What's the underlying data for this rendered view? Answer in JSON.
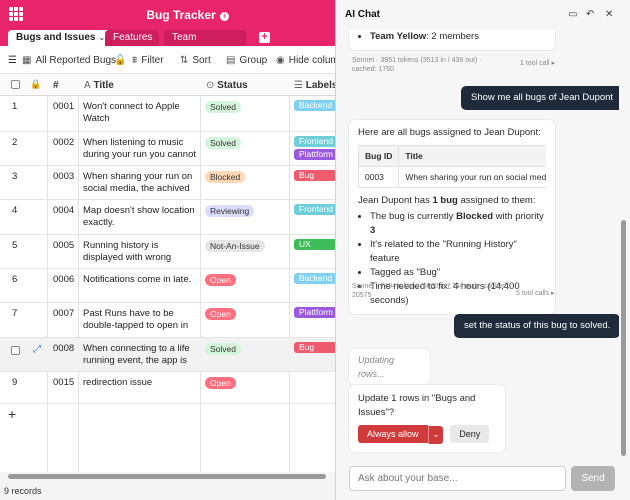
{
  "app": {
    "title": "Bug Tracker"
  },
  "tabs": [
    {
      "label": "Bugs and Issues"
    },
    {
      "label": "Features"
    },
    {
      "label": "Team members"
    }
  ],
  "toolbar": {
    "view": "All Reported Bugs",
    "filter": "Filter",
    "sort": "Sort",
    "group": "Group",
    "hide": "Hide columns"
  },
  "columns": {
    "title": "Title",
    "status": "Status",
    "labels": "Labels"
  },
  "rows": [
    {
      "n": "1",
      "id": "0001",
      "title": "Won't connect to Apple Watch",
      "status": "Solved",
      "labels": [
        "Backend"
      ]
    },
    {
      "n": "2",
      "id": "0002",
      "title": "When listening to music during your run you cannot ...",
      "status": "Solved",
      "labels": [
        "Frontend",
        "Plattform"
      ]
    },
    {
      "n": "3",
      "id": "0003",
      "title": "When sharing your run on social media, the achived ...",
      "status": "Blocked",
      "labels": [
        "Bug"
      ]
    },
    {
      "n": "4",
      "id": "0004",
      "title": "Map doesn't show location exactly.",
      "status": "Reviewing",
      "labels": [
        "Frontend"
      ]
    },
    {
      "n": "5",
      "id": "0005",
      "title": "Running history is displayed with wrong dates.",
      "status": "Not-An-Issue",
      "labels": [
        "UX"
      ]
    },
    {
      "n": "6",
      "id": "0006",
      "title": "Notifications come in late.",
      "status": "Open",
      "labels": [
        "Backend"
      ]
    },
    {
      "n": "7",
      "id": "0007",
      "title": "Past Runs have to be double-tapped to open in Android.",
      "status": "Open",
      "labels": [
        "Plattform"
      ]
    },
    {
      "n": "",
      "id": "0008",
      "title": "When connecting to a life running event, the app is ...",
      "status": "Solved",
      "labels": [
        "Bug"
      ]
    },
    {
      "n": "9",
      "id": "0015",
      "title": "redirection issue",
      "status": "Open",
      "labels": []
    }
  ],
  "status_colors": {
    "Solved": "#d4f5dc",
    "Blocked": "#ffd9b8",
    "Reviewing": "#dcdcfb",
    "Not-An-Issue": "#e6e6e6",
    "Open": "#ff6f7d"
  },
  "label_colors": {
    "Backend": "#7fd1ef",
    "Frontend": "#6fcfd9",
    "Plattform": "#9b59e0",
    "Bug": "#ef5b6e",
    "UX": "#3dbd5a"
  },
  "footer": {
    "records": "9 records"
  },
  "chat": {
    "title": "AI Chat",
    "msg0": {
      "name": "Team Yellow",
      "rest": ": 2 members"
    },
    "meta0": "Sonnet · 3951 tokens (3513 in / 438 out) · cached: 1760",
    "meta0_tools": "1 tool call ▸",
    "user1": "Show me all bugs of Jean Dupont",
    "reply1": {
      "intro": "Here are all bugs assigned to Jean Dupont:",
      "table_head": [
        "Bug ID",
        "Title"
      ],
      "table_row": [
        "0003",
        "When sharing your run on social media, th"
      ],
      "summary_a": "Jean Dupont has ",
      "summary_b": "1 bug",
      "summary_c": " assigned to them:",
      "b1a": "The bug is currently ",
      "b1b": "Blocked",
      "b1c": " with priority ",
      "b1d": "3",
      "b2": "It's related to the \"Running History\" feature",
      "b3": "Tagged as \"Bug\"",
      "b4": "Time needed to fix: 4 hours (14,400 seconds)"
    },
    "meta1": "Sonnet · 7404 tokens (6660 in / 744 out) · cached: 20575",
    "meta1_tools": "5 tool calls ▸",
    "user2": "set the status of this bug to solved.",
    "updating": "Updating rows...",
    "confirm": {
      "question": "Update 1 rows in \"Bugs and Issues\"?",
      "allow": "Always allow",
      "deny": "Deny"
    },
    "input_placeholder": "Ask about your base...",
    "send": "Send"
  }
}
